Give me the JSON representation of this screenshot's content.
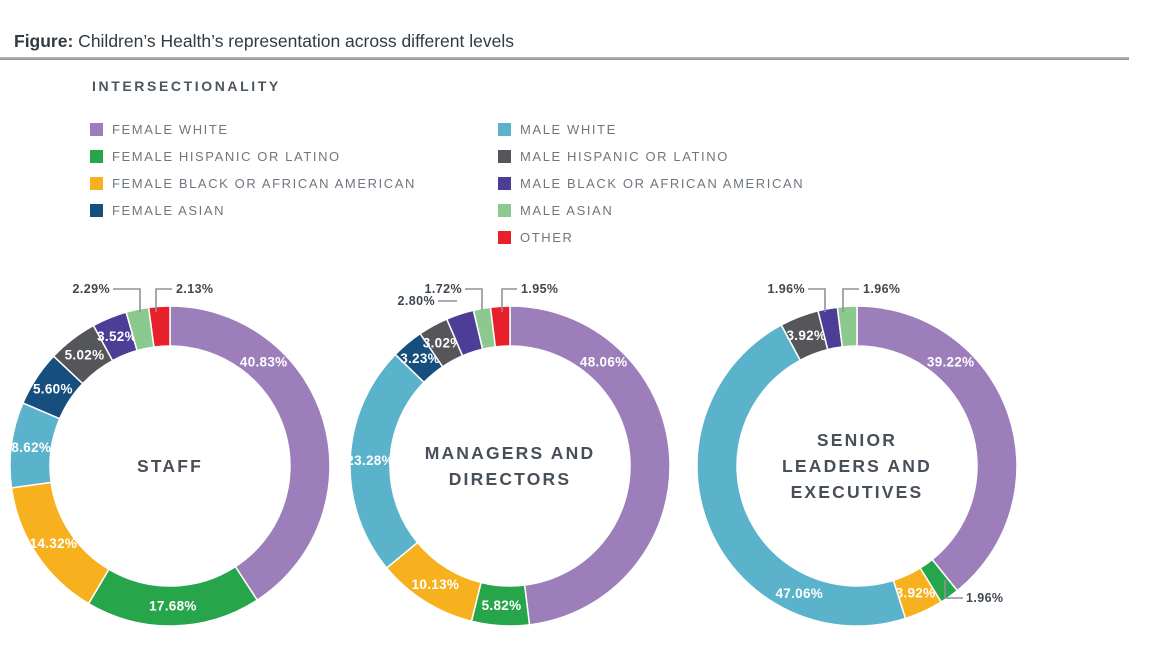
{
  "figure": {
    "title_prefix": "Figure:",
    "title_text": " Children’s Health’s representation across different levels"
  },
  "legend": {
    "title": "INTERSECTIONALITY",
    "columns": [
      [
        {
          "label": "FEMALE WHITE",
          "color": "#9C7EBB"
        },
        {
          "label": "FEMALE HISPANIC OR LATINO",
          "color": "#27A54B"
        },
        {
          "label": "FEMALE BLACK OR AFRICAN AMERICAN",
          "color": "#F8B11E"
        },
        {
          "label": "FEMALE ASIAN",
          "color": "#164F7E"
        }
      ],
      [
        {
          "label": "MALE WHITE",
          "color": "#5AB3CA"
        },
        {
          "label": "MALE HISPANIC OR LATINO",
          "color": "#545659"
        },
        {
          "label": "MALE BLACK OR AFRICAN AMERICAN",
          "color": "#4C3E96"
        },
        {
          "label": "MALE ASIAN",
          "color": "#8CC98F"
        },
        {
          "label": "OTHER",
          "color": "#E7202B"
        }
      ]
    ]
  },
  "chart_data": [
    {
      "type": "donut",
      "title_lines": [
        "STAFF"
      ],
      "start_angle_deg": 0,
      "direction": "clockwise",
      "segments": [
        {
          "label": "FEMALE WHITE",
          "value": 40.83,
          "display": "40.83%"
        },
        {
          "label": "FEMALE HISPANIC OR LATINO",
          "value": 17.68,
          "display": "17.68%"
        },
        {
          "label": "FEMALE BLACK OR AFRICAN AMERICAN",
          "value": 14.32,
          "display": "14.32%"
        },
        {
          "label": "MALE WHITE",
          "value": 8.62,
          "display": "8.62%"
        },
        {
          "label": "FEMALE ASIAN",
          "value": 5.6,
          "display": "5.60%"
        },
        {
          "label": "MALE HISPANIC OR LATINO",
          "value": 5.02,
          "display": "5.02%"
        },
        {
          "label": "MALE BLACK OR AFRICAN AMERICAN",
          "value": 3.52,
          "display": "3.52%"
        },
        {
          "label": "MALE ASIAN",
          "value": 2.29,
          "display": "2.29%",
          "callout": {
            "points": [
              [
                113,
                15
              ],
              [
                140,
                15
              ],
              [
                140,
                38
              ]
            ],
            "text": [
              110,
              19
            ],
            "anchor": "end"
          }
        },
        {
          "label": "OTHER",
          "value": 2.13,
          "display": "2.13%",
          "callout": {
            "points": [
              [
                172,
                15
              ],
              [
                156,
                15
              ],
              [
                156,
                38
              ]
            ],
            "text": [
              176,
              19
            ],
            "anchor": "start"
          }
        }
      ]
    },
    {
      "type": "donut",
      "title_lines": [
        "MANAGERS AND",
        "DIRECTORS"
      ],
      "start_angle_deg": 0,
      "direction": "clockwise",
      "segments": [
        {
          "label": "FEMALE WHITE",
          "value": 48.06,
          "display": "48.06%"
        },
        {
          "label": "FEMALE HISPANIC OR LATINO",
          "value": 5.82,
          "display": "5.82%"
        },
        {
          "label": "FEMALE BLACK OR AFRICAN AMERICAN",
          "value": 10.13,
          "display": "10.13%"
        },
        {
          "label": "MALE WHITE",
          "value": 23.28,
          "display": "23.28%"
        },
        {
          "label": "FEMALE ASIAN",
          "value": 3.23,
          "display": "3.23%"
        },
        {
          "label": "MALE HISPANIC OR LATINO",
          "value": 3.02,
          "display": "3.02%"
        },
        {
          "label": "MALE BLACK OR AFRICAN AMERICAN",
          "value": 2.8,
          "display": "2.80%",
          "callout": {
            "points": [
              [
                98,
                27
              ],
              [
                117,
                27
              ]
            ],
            "text": [
              95,
              31
            ],
            "anchor": "end"
          }
        },
        {
          "label": "MALE ASIAN",
          "value": 1.72,
          "display": "1.72%",
          "callout": {
            "points": [
              [
                125,
                15
              ],
              [
                142,
                15
              ],
              [
                142,
                36
              ]
            ],
            "text": [
              122,
              19
            ],
            "anchor": "end"
          }
        },
        {
          "label": "OTHER",
          "value": 1.95,
          "display": "1.95%",
          "callout": {
            "points": [
              [
                177,
                15
              ],
              [
                162,
                15
              ],
              [
                162,
                38
              ]
            ],
            "text": [
              181,
              19
            ],
            "anchor": "start"
          }
        }
      ]
    },
    {
      "type": "donut",
      "title_lines": [
        "SENIOR",
        "LEADERS AND",
        "EXECUTIVES"
      ],
      "start_angle_deg": 0,
      "direction": "clockwise",
      "segments": [
        {
          "label": "FEMALE WHITE",
          "value": 39.22,
          "display": "39.22%"
        },
        {
          "label": "FEMALE HISPANIC OR LATINO",
          "value": 1.96,
          "display": "1.96%",
          "callout": {
            "points": [
              [
                258,
                306
              ],
              [
                258,
                324
              ],
              [
                276,
                324
              ]
            ],
            "text": [
              279,
              328
            ],
            "anchor": "start"
          }
        },
        {
          "label": "FEMALE BLACK OR AFRICAN AMERICAN",
          "value": 3.92,
          "display": "3.92%"
        },
        {
          "label": "MALE WHITE",
          "value": 47.06,
          "display": "47.06%"
        },
        {
          "label": "MALE HISPANIC OR LATINO",
          "value": 3.92,
          "display": "3.92%"
        },
        {
          "label": "MALE BLACK OR AFRICAN AMERICAN",
          "value": 1.96,
          "display": "1.96%",
          "callout": {
            "points": [
              [
                121,
                15
              ],
              [
                138,
                15
              ],
              [
                138,
                38
              ]
            ],
            "text": [
              118,
              19
            ],
            "anchor": "end"
          }
        },
        {
          "label": "MALE ASIAN",
          "value": 1.96,
          "display": "1.96%",
          "callout": {
            "points": [
              [
                172,
                15
              ],
              [
                156,
                15
              ],
              [
                156,
                38
              ]
            ],
            "text": [
              176,
              19
            ],
            "anchor": "start"
          }
        }
      ]
    }
  ],
  "style": {
    "callout_line_color": "#8E9297",
    "callout_text_color": "#3E4850",
    "inside_label_color": "#FFFFFF",
    "center_title_color": "#474F59"
  }
}
